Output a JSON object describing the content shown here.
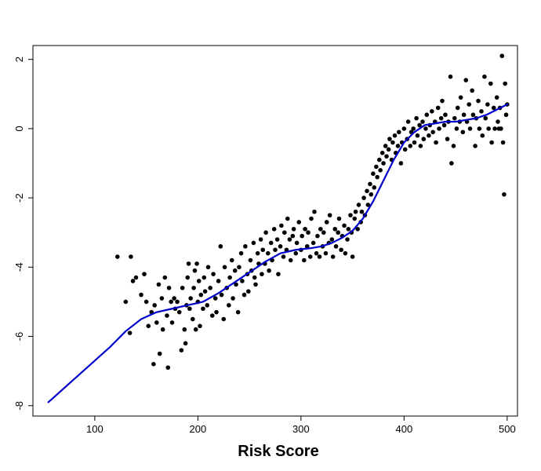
{
  "chart_data": {
    "type": "scatter",
    "title": "",
    "xlabel": "Risk Score",
    "ylabel": "",
    "xlim": [
      40,
      510
    ],
    "ylim": [
      -8.3,
      2.4
    ],
    "x_ticks": [
      100,
      200,
      300,
      400,
      500
    ],
    "y_ticks": [
      -8,
      -6,
      -4,
      -2,
      0,
      2
    ],
    "x_tick_labels": [
      "100",
      "200",
      "300",
      "400",
      "500"
    ],
    "y_tick_labels": [
      "-8",
      "-6",
      "-4",
      "-2",
      "0",
      "2"
    ],
    "grid": false,
    "legend": "none",
    "point_color": "#000000",
    "curve_color": "#0000cc",
    "series": [
      {
        "type": "scatter",
        "points": [
          [
            122,
            -3.7
          ],
          [
            130,
            -5.0
          ],
          [
            134,
            -5.9
          ],
          [
            135,
            -3.7
          ],
          [
            137,
            -4.4
          ],
          [
            140,
            -4.3
          ],
          [
            145,
            -4.8
          ],
          [
            148,
            -4.2
          ],
          [
            150,
            -5.0
          ],
          [
            152,
            -5.7
          ],
          [
            155,
            -5.3
          ],
          [
            157,
            -6.8
          ],
          [
            158,
            -5.1
          ],
          [
            160,
            -5.6
          ],
          [
            162,
            -4.5
          ],
          [
            163,
            -6.5
          ],
          [
            165,
            -4.9
          ],
          [
            166,
            -5.8
          ],
          [
            168,
            -4.3
          ],
          [
            170,
            -5.4
          ],
          [
            171,
            -6.9
          ],
          [
            172,
            -4.6
          ],
          [
            174,
            -5.0
          ],
          [
            175,
            -5.6
          ],
          [
            177,
            -4.9
          ],
          [
            178,
            -5.2
          ],
          [
            180,
            -5.0
          ],
          [
            182,
            -5.3
          ],
          [
            184,
            -6.4
          ],
          [
            185,
            -4.6
          ],
          [
            187,
            -5.8
          ],
          [
            188,
            -6.2
          ],
          [
            189,
            -5.1
          ],
          [
            190,
            -4.3
          ],
          [
            191,
            -3.9
          ],
          [
            192,
            -5.2
          ],
          [
            193,
            -4.9
          ],
          [
            195,
            -5.5
          ],
          [
            196,
            -4.6
          ],
          [
            197,
            -4.1
          ],
          [
            198,
            -5.8
          ],
          [
            199,
            -3.9
          ],
          [
            200,
            -5.0
          ],
          [
            201,
            -4.4
          ],
          [
            202,
            -5.7
          ],
          [
            203,
            -4.8
          ],
          [
            205,
            -5.2
          ],
          [
            206,
            -4.3
          ],
          [
            207,
            -4.7
          ],
          [
            209,
            -5.1
          ],
          [
            210,
            -4.0
          ],
          [
            212,
            -4.6
          ],
          [
            214,
            -5.4
          ],
          [
            215,
            -4.2
          ],
          [
            217,
            -4.9
          ],
          [
            218,
            -5.3
          ],
          [
            220,
            -4.4
          ],
          [
            222,
            -3.4
          ],
          [
            223,
            -4.8
          ],
          [
            225,
            -5.5
          ],
          [
            226,
            -4.0
          ],
          [
            228,
            -4.6
          ],
          [
            230,
            -5.1
          ],
          [
            231,
            -4.3
          ],
          [
            233,
            -3.8
          ],
          [
            234,
            -4.9
          ],
          [
            236,
            -4.1
          ],
          [
            237,
            -4.5
          ],
          [
            239,
            -5.3
          ],
          [
            240,
            -4.0
          ],
          [
            242,
            -3.6
          ],
          [
            243,
            -4.4
          ],
          [
            245,
            -4.8
          ],
          [
            246,
            -3.4
          ],
          [
            248,
            -4.2
          ],
          [
            249,
            -4.7
          ],
          [
            251,
            -3.8
          ],
          [
            252,
            -4.1
          ],
          [
            254,
            -3.3
          ],
          [
            255,
            -4.3
          ],
          [
            256,
            -4.5
          ],
          [
            258,
            -3.6
          ],
          [
            259,
            -3.9
          ],
          [
            261,
            -3.2
          ],
          [
            262,
            -4.2
          ],
          [
            263,
            -3.5
          ],
          [
            265,
            -3.9
          ],
          [
            266,
            -3.0
          ],
          [
            268,
            -3.6
          ],
          [
            269,
            -4.1
          ],
          [
            271,
            -3.3
          ],
          [
            272,
            -3.8
          ],
          [
            274,
            -2.9
          ],
          [
            275,
            -3.5
          ],
          [
            277,
            -3.2
          ],
          [
            278,
            -4.2
          ],
          [
            280,
            -3.4
          ],
          [
            281,
            -2.8
          ],
          [
            283,
            -3.7
          ],
          [
            284,
            -3.0
          ],
          [
            286,
            -3.5
          ],
          [
            287,
            -2.6
          ],
          [
            289,
            -3.2
          ],
          [
            290,
            -3.8
          ],
          [
            292,
            -3.1
          ],
          [
            293,
            -2.9
          ],
          [
            295,
            -3.6
          ],
          [
            296,
            -3.3
          ],
          [
            298,
            -2.7
          ],
          [
            300,
            -3.5
          ],
          [
            301,
            -3.1
          ],
          [
            303,
            -3.8
          ],
          [
            304,
            -2.9
          ],
          [
            306,
            -3.4
          ],
          [
            307,
            -3.0
          ],
          [
            309,
            -3.7
          ],
          [
            310,
            -2.6
          ],
          [
            312,
            -3.3
          ],
          [
            313,
            -2.4
          ],
          [
            315,
            -3.6
          ],
          [
            316,
            -3.1
          ],
          [
            318,
            -3.7
          ],
          [
            319,
            -2.9
          ],
          [
            321,
            -3.4
          ],
          [
            322,
            -3.0
          ],
          [
            324,
            -3.6
          ],
          [
            325,
            -2.7
          ],
          [
            327,
            -3.3
          ],
          [
            328,
            -2.5
          ],
          [
            330,
            -3.2
          ],
          [
            331,
            -3.7
          ],
          [
            333,
            -2.9
          ],
          [
            334,
            -3.4
          ],
          [
            336,
            -3.0
          ],
          [
            337,
            -2.6
          ],
          [
            339,
            -3.5
          ],
          [
            340,
            -3.1
          ],
          [
            342,
            -2.8
          ],
          [
            343,
            -3.6
          ],
          [
            345,
            -3.2
          ],
          [
            346,
            -2.9
          ],
          [
            348,
            -2.5
          ],
          [
            349,
            -3.0
          ],
          [
            350,
            -3.7
          ],
          [
            352,
            -2.6
          ],
          [
            353,
            -2.4
          ],
          [
            355,
            -2.9
          ],
          [
            356,
            -2.2
          ],
          [
            358,
            -2.7
          ],
          [
            359,
            -2.4
          ],
          [
            361,
            -2.0
          ],
          [
            362,
            -2.5
          ],
          [
            364,
            -1.8
          ],
          [
            365,
            -2.2
          ],
          [
            367,
            -1.6
          ],
          [
            368,
            -1.9
          ],
          [
            370,
            -1.3
          ],
          [
            371,
            -1.7
          ],
          [
            373,
            -1.1
          ],
          [
            374,
            -1.4
          ],
          [
            376,
            -0.9
          ],
          [
            377,
            -1.2
          ],
          [
            379,
            -0.7
          ],
          [
            380,
            -1.0
          ],
          [
            382,
            -0.5
          ],
          [
            383,
            -0.8
          ],
          [
            385,
            -0.6
          ],
          [
            386,
            -0.3
          ],
          [
            388,
            -0.9
          ],
          [
            389,
            -0.4
          ],
          [
            391,
            -0.2
          ],
          [
            392,
            -0.7
          ],
          [
            394,
            -0.5
          ],
          [
            395,
            -0.1
          ],
          [
            397,
            -1.0
          ],
          [
            398,
            -0.4
          ],
          [
            400,
            0.0
          ],
          [
            401,
            -0.6
          ],
          [
            403,
            -0.3
          ],
          [
            404,
            0.2
          ],
          [
            406,
            -0.5
          ],
          [
            407,
            -0.1
          ],
          [
            409,
            0.0
          ],
          [
            410,
            -0.4
          ],
          [
            412,
            0.3
          ],
          [
            413,
            -0.2
          ],
          [
            415,
            0.1
          ],
          [
            416,
            -0.5
          ],
          [
            418,
            0.2
          ],
          [
            419,
            -0.3
          ],
          [
            421,
            0.0
          ],
          [
            422,
            0.4
          ],
          [
            424,
            -0.2
          ],
          [
            425,
            0.1
          ],
          [
            427,
            0.5
          ],
          [
            428,
            -0.1
          ],
          [
            430,
            0.2
          ],
          [
            431,
            -0.4
          ],
          [
            433,
            0.6
          ],
          [
            434,
            0.0
          ],
          [
            436,
            0.3
          ],
          [
            437,
            0.8
          ],
          [
            439,
            0.1
          ],
          [
            440,
            0.4
          ],
          [
            442,
            -0.3
          ],
          [
            443,
            0.2
          ],
          [
            445,
            1.5
          ],
          [
            446,
            -1.0
          ],
          [
            448,
            -0.5
          ],
          [
            449,
            0.3
          ],
          [
            451,
            0.0
          ],
          [
            452,
            0.6
          ],
          [
            454,
            0.2
          ],
          [
            455,
            0.9
          ],
          [
            457,
            -0.1
          ],
          [
            458,
            0.4
          ],
          [
            460,
            1.4
          ],
          [
            461,
            0.2
          ],
          [
            463,
            0.7
          ],
          [
            464,
            0.0
          ],
          [
            466,
            1.1
          ],
          [
            467,
            0.4
          ],
          [
            469,
            -0.5
          ],
          [
            470,
            0.3
          ],
          [
            472,
            0.8
          ],
          [
            473,
            0.0
          ],
          [
            475,
            0.5
          ],
          [
            476,
            -0.2
          ],
          [
            478,
            1.5
          ],
          [
            479,
            0.3
          ],
          [
            481,
            0.7
          ],
          [
            482,
            0.0
          ],
          [
            484,
            1.3
          ],
          [
            485,
            -0.4
          ],
          [
            487,
            0.6
          ],
          [
            488,
            0.0
          ],
          [
            490,
            0.9
          ],
          [
            491,
            0.2
          ],
          [
            492,
            0.0
          ],
          [
            493,
            0.6
          ],
          [
            494,
            0.0
          ],
          [
            495,
            2.1
          ],
          [
            496,
            -0.4
          ],
          [
            497,
            -1.9
          ],
          [
            498,
            1.3
          ],
          [
            499,
            0.4
          ],
          [
            500,
            0.7
          ]
        ]
      },
      {
        "type": "line",
        "points": [
          [
            55,
            -7.9
          ],
          [
            70,
            -7.5
          ],
          [
            85,
            -7.1
          ],
          [
            100,
            -6.7
          ],
          [
            115,
            -6.3
          ],
          [
            130,
            -5.85
          ],
          [
            145,
            -5.5
          ],
          [
            160,
            -5.3
          ],
          [
            175,
            -5.2
          ],
          [
            190,
            -5.1
          ],
          [
            205,
            -5.0
          ],
          [
            220,
            -4.75
          ],
          [
            235,
            -4.45
          ],
          [
            250,
            -4.15
          ],
          [
            265,
            -3.85
          ],
          [
            280,
            -3.6
          ],
          [
            295,
            -3.5
          ],
          [
            310,
            -3.45
          ],
          [
            320,
            -3.4
          ],
          [
            330,
            -3.3
          ],
          [
            340,
            -3.15
          ],
          [
            350,
            -2.95
          ],
          [
            360,
            -2.6
          ],
          [
            370,
            -2.1
          ],
          [
            380,
            -1.5
          ],
          [
            390,
            -0.9
          ],
          [
            400,
            -0.4
          ],
          [
            410,
            -0.1
          ],
          [
            420,
            0.1
          ],
          [
            430,
            0.15
          ],
          [
            440,
            0.2
          ],
          [
            450,
            0.2
          ],
          [
            460,
            0.25
          ],
          [
            470,
            0.3
          ],
          [
            480,
            0.4
          ],
          [
            490,
            0.55
          ],
          [
            500,
            0.7
          ]
        ]
      }
    ]
  }
}
